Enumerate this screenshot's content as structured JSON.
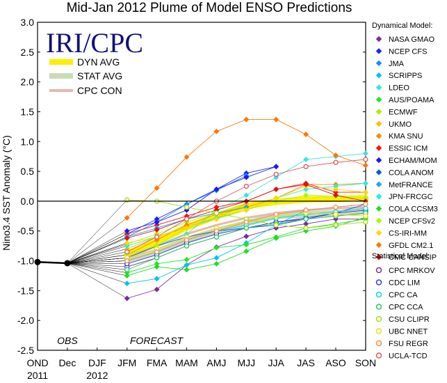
{
  "title": "Mid-Jan 2012 Plume of Model ENSO Predictions",
  "brand": "IRI/CPC",
  "chart_data": {
    "type": "line",
    "title": "Mid-Jan 2012 Plume of Model ENSO Predictions",
    "ylabel": "Nino3.4 SST Anomaly (°C)",
    "xlabel": "",
    "categories": [
      "OND",
      "Dec",
      "DJF",
      "JFM",
      "FMA",
      "MAM",
      "AMJ",
      "MJJ",
      "JJA",
      "JAS",
      "ASO",
      "SON"
    ],
    "year_labels": [
      {
        "label": "2011",
        "category": "OND"
      },
      {
        "label": "2012",
        "category": "DJF"
      }
    ],
    "yticks": [
      "-2.5",
      "-2.0",
      "-1.5",
      "-1.0",
      "-0.5",
      "0.0",
      "0.5",
      "1.0",
      "1.5",
      "2.0",
      "2.5",
      "3.0"
    ],
    "ylim": [
      -2.5,
      3.0
    ],
    "zero_line": true,
    "annotations": [
      "OBS",
      "FORECAST"
    ],
    "observed": {
      "name": "OBS",
      "color": "#000000",
      "x": [
        "OND",
        "Dec"
      ],
      "values": [
        -1.02,
        -1.04
      ]
    },
    "averages": [
      {
        "name": "DYN AVG",
        "color": "#ffee00",
        "x": [
          "JFM",
          "FMA",
          "MAM",
          "AMJ",
          "MJJ",
          "JJA",
          "JAS",
          "ASO",
          "SON"
        ],
        "values": [
          -0.88,
          -0.68,
          -0.44,
          -0.25,
          -0.08,
          -0.01,
          0.03,
          0.04,
          0.05
        ]
      },
      {
        "name": "STAT AVG",
        "color": "#c8ddb6",
        "x": [
          "JFM",
          "FMA",
          "MAM",
          "AMJ",
          "MJJ",
          "JJA",
          "JAS",
          "ASO",
          "SON"
        ],
        "values": [
          -0.98,
          -0.85,
          -0.66,
          -0.5,
          -0.37,
          -0.25,
          -0.22,
          -0.2,
          -0.17
        ]
      },
      {
        "name": "CPC CON",
        "color": "#e5b7b7",
        "x": [
          "JFM",
          "FMA",
          "MAM",
          "AMJ",
          "MJJ",
          "JJA",
          "JAS",
          "ASO",
          "SON"
        ],
        "values": [
          -0.95,
          -0.75,
          -0.55,
          -0.4,
          -0.28,
          -0.2,
          -0.15,
          -0.12,
          -0.1
        ]
      }
    ],
    "legend_groups": [
      "Dynamical Model:",
      "Statistical Model:"
    ],
    "dynamical": [
      {
        "name": "NASA GMAO",
        "color": "#7a2a9e",
        "values": [
          -1.63,
          -1.48,
          -1.07,
          -0.77,
          -0.59,
          -0.45,
          -0.38,
          -0.3,
          -0.3
        ]
      },
      {
        "name": "NCEP CFS",
        "color": "#1426ff",
        "values": [
          -0.55,
          -0.3,
          -0.05,
          0.2,
          0.47,
          0.58,
          null,
          null,
          null
        ]
      },
      {
        "name": "JMA",
        "color": "#1a8cff",
        "values": [
          -0.6,
          -0.35,
          -0.05,
          0.18,
          0.43,
          null,
          null,
          null,
          null
        ]
      },
      {
        "name": "SCRIPPS",
        "color": "#00bfff",
        "values": [
          -1.38,
          -1.3,
          -1.07,
          -0.95,
          -0.7,
          -0.4,
          -0.15,
          -0.1,
          -0.05
        ]
      },
      {
        "name": "LDEO",
        "color": "#33e6e6",
        "values": [
          -0.95,
          -0.75,
          -0.55,
          -0.15,
          0.1,
          0.4,
          0.7,
          0.75,
          0.8
        ]
      },
      {
        "name": "AUS/POAMA",
        "color": "#22e622",
        "values": [
          -1.2,
          -1.05,
          -0.98,
          -0.78,
          -0.73,
          -0.6,
          -0.45,
          -0.38,
          -0.3
        ]
      },
      {
        "name": "ECMWF",
        "color": "#aaee00",
        "values": [
          -0.72,
          -0.55,
          -0.35,
          -0.2,
          -0.05,
          null,
          null,
          null,
          null
        ]
      },
      {
        "name": "UKMO",
        "color": "#ffbb00",
        "values": [
          -0.8,
          -0.6,
          -0.42,
          -0.28,
          -0.05,
          null,
          null,
          null,
          null
        ]
      },
      {
        "name": "KMA SNU",
        "color": "#ff8800",
        "values": [
          -0.9,
          -0.65,
          -0.4,
          -0.22,
          -0.1,
          0.05,
          0.28,
          0.28,
          0.3
        ]
      },
      {
        "name": "ESSIC ICM",
        "color": "#ff1111",
        "values": [
          -0.55,
          -0.4,
          -0.25,
          -0.1,
          0.0,
          0.2,
          0.3,
          0.15,
          0.15
        ]
      },
      {
        "name": "ECHAM/MOM",
        "color": "#1a1aee",
        "values": [
          -0.5,
          -0.35,
          -0.15,
          0.2,
          0.4,
          0.58,
          null,
          null,
          null
        ]
      },
      {
        "name": "COLA ANOM",
        "color": "#0a55dd",
        "values": [
          -0.95,
          -0.75,
          -0.6,
          -0.5,
          -0.45,
          -0.4,
          -0.3,
          -0.2,
          -0.05
        ]
      },
      {
        "name": "MetFRANCE",
        "color": "#1aa8ff",
        "values": [
          -0.6,
          -0.45,
          -0.3,
          -0.2,
          -0.1,
          null,
          null,
          null,
          null
        ]
      },
      {
        "name": "JPN-FRCGC",
        "color": "#22eedd",
        "values": [
          -0.75,
          -0.6,
          -0.45,
          -0.28,
          -0.15,
          0.05,
          0.2,
          0.25,
          0.3
        ]
      },
      {
        "name": "COLA CCSM3",
        "color": "#22dd22",
        "values": [
          -1.25,
          -1.1,
          -1.15,
          -1.05,
          -0.84,
          -0.62,
          -0.5,
          -0.42,
          -0.27
        ]
      },
      {
        "name": "NCEP CFSv2",
        "color": "#a0ff00",
        "values": [
          -0.9,
          -0.75,
          -0.45,
          -0.3,
          -0.15,
          0.0,
          0.1,
          0.08,
          0.05
        ]
      },
      {
        "name": "CS-IRI-MM",
        "color": "#ffd700",
        "values": [
          -0.7,
          -0.6,
          -0.45,
          -0.3,
          -0.15,
          0.05,
          0.25,
          0.2,
          0.15
        ]
      },
      {
        "name": "GFDL CM2.1",
        "color": "#ff7700",
        "values": [
          -0.28,
          0.22,
          0.74,
          1.17,
          1.37,
          1.37,
          1.12,
          0.77,
          0.6
        ]
      },
      {
        "name": "CMC CANSIP",
        "color": "#dd1111",
        "values": [
          -0.62,
          -0.48,
          -0.3,
          -0.15,
          0.0,
          0.2,
          0.28,
          0.1,
          0.0
        ]
      }
    ],
    "statistical": [
      {
        "name": "CPC MRKOV",
        "color": "#7a2a9e",
        "values": [
          -1.1,
          -0.95,
          -0.75,
          -0.6,
          -0.45,
          -0.35,
          -0.3,
          -0.25,
          -0.2
        ]
      },
      {
        "name": "CDC LIM",
        "color": "#3333ff",
        "values": [
          -1.05,
          -0.9,
          -0.7,
          -0.55,
          -0.45,
          -0.35,
          -0.28,
          -0.2,
          -0.15
        ]
      },
      {
        "name": "CPC CA",
        "color": "#00dddd",
        "values": [
          -1.0,
          -0.85,
          -0.65,
          -0.5,
          -0.4,
          -0.28,
          -0.22,
          -0.18,
          -0.12
        ]
      },
      {
        "name": "CPC CCA",
        "color": "#22cc66",
        "values": [
          -1.15,
          -0.95,
          -0.75,
          -0.6,
          -0.45,
          -0.38,
          -0.3,
          -0.25,
          -0.2
        ]
      },
      {
        "name": "CSU CLIPR",
        "color": "#a0e000",
        "values": [
          0.02,
          0.0,
          -0.1,
          -0.2,
          -0.3,
          -0.4,
          -0.45,
          -0.4,
          -0.35
        ]
      },
      {
        "name": "UBC NNET",
        "color": "#eedd00",
        "values": [
          -0.95,
          -0.8,
          -0.6,
          -0.45,
          -0.35,
          -0.25,
          -0.2,
          -0.22,
          -0.25
        ]
      },
      {
        "name": "FSU REGR",
        "color": "#ff8844",
        "values": [
          -1.0,
          -0.85,
          -0.65,
          -0.5,
          -0.35,
          -0.22,
          -0.15,
          -0.1,
          -0.05
        ]
      },
      {
        "name": "UCLA-TCD",
        "color": "#e05555",
        "values": [
          -0.85,
          -0.6,
          -0.3,
          0.0,
          0.25,
          0.45,
          0.58,
          0.65,
          0.7
        ]
      }
    ]
  }
}
